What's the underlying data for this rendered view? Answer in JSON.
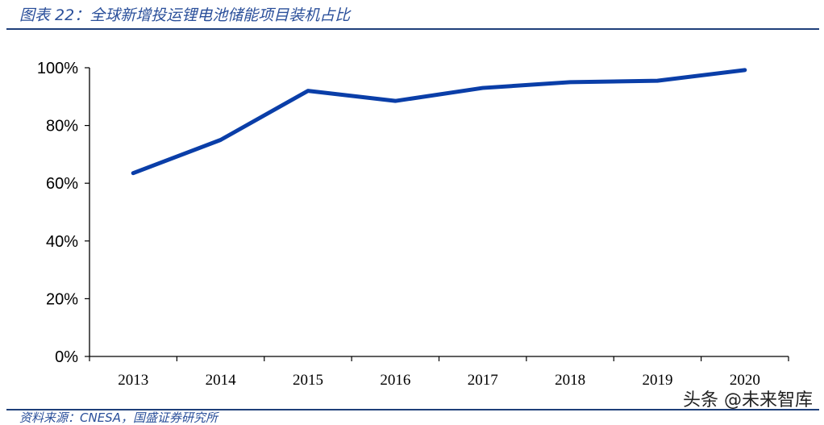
{
  "title": "图表 22：全球新增投运锂电池储能项目装机占比",
  "source": "资料来源：CNESA，国盛证券研究所",
  "watermark": "头条 @未来智库",
  "chart_data": {
    "type": "line",
    "categories": [
      "2013",
      "2014",
      "2015",
      "2016",
      "2017",
      "2018",
      "2019",
      "2020"
    ],
    "series": [
      {
        "values": [
          63.5,
          75,
          92,
          88.5,
          93,
          95,
          95.5,
          99.2
        ],
        "color": "#0a3ea8"
      }
    ],
    "ylim": [
      0,
      100
    ],
    "yticks": [
      0,
      20,
      40,
      60,
      80,
      100
    ],
    "ytick_labels": [
      "0%",
      "20%",
      "40%",
      "60%",
      "80%",
      "100%"
    ],
    "grid": false,
    "legend": "none"
  }
}
